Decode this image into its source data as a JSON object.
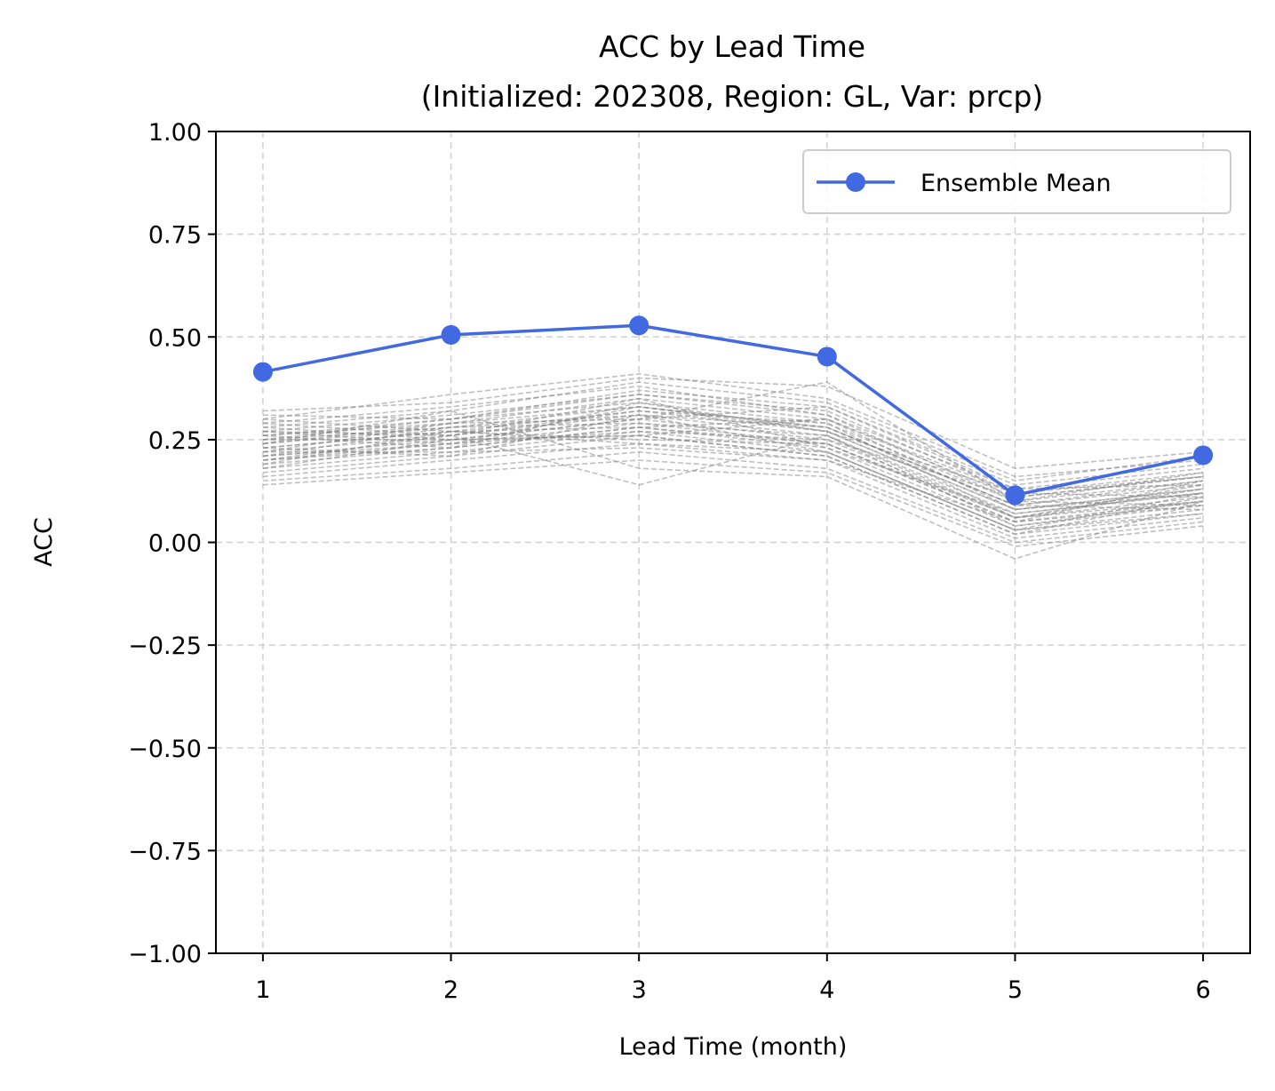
{
  "chart_data": {
    "type": "line",
    "title_line1": "ACC by Lead Time",
    "title_line2": "(Initialized: 202308, Region: GL, Var: prcp)",
    "xlabel": "Lead Time (month)",
    "ylabel": "ACC",
    "x": [
      1,
      2,
      3,
      4,
      5,
      6
    ],
    "xlim": [
      0.75,
      6.25
    ],
    "ylim": [
      -1.0,
      1.0
    ],
    "xticks": [
      1,
      2,
      3,
      4,
      5,
      6
    ],
    "xtick_labels": [
      "1",
      "2",
      "3",
      "4",
      "5",
      "6"
    ],
    "yticks": [
      -1.0,
      -0.75,
      -0.5,
      -0.25,
      0.0,
      0.25,
      0.5,
      0.75,
      1.0
    ],
    "ytick_labels": [
      "−1.00",
      "−0.75",
      "−0.50",
      "−0.25",
      "0.00",
      "0.25",
      "0.50",
      "0.75",
      "1.00"
    ],
    "grid": true,
    "legend_position": "top-right",
    "colors": {
      "ensemble_mean": "#4169E1",
      "members": "#808080",
      "grid": "#d0d0d0"
    },
    "series": [
      {
        "name": "Ensemble Mean",
        "values": [
          0.415,
          0.505,
          0.528,
          0.452,
          0.115,
          0.212
        ]
      }
    ],
    "member_series": [
      [
        0.32,
        0.34,
        0.4,
        0.38,
        0.18,
        0.22
      ],
      [
        0.3,
        0.36,
        0.41,
        0.35,
        0.16,
        0.2
      ],
      [
        0.28,
        0.32,
        0.39,
        0.34,
        0.15,
        0.21
      ],
      [
        0.31,
        0.3,
        0.37,
        0.33,
        0.14,
        0.19
      ],
      [
        0.29,
        0.33,
        0.38,
        0.31,
        0.13,
        0.18
      ],
      [
        0.27,
        0.31,
        0.36,
        0.32,
        0.12,
        0.17
      ],
      [
        0.26,
        0.29,
        0.35,
        0.3,
        0.11,
        0.16
      ],
      [
        0.25,
        0.3,
        0.34,
        0.29,
        0.1,
        0.15
      ],
      [
        0.24,
        0.28,
        0.33,
        0.28,
        0.09,
        0.14
      ],
      [
        0.23,
        0.27,
        0.32,
        0.27,
        0.08,
        0.13
      ],
      [
        0.22,
        0.26,
        0.31,
        0.26,
        0.07,
        0.12
      ],
      [
        0.21,
        0.25,
        0.3,
        0.25,
        0.06,
        0.11
      ],
      [
        0.2,
        0.24,
        0.29,
        0.24,
        0.05,
        0.1
      ],
      [
        0.19,
        0.23,
        0.28,
        0.23,
        0.04,
        0.09
      ],
      [
        0.18,
        0.22,
        0.27,
        0.22,
        0.03,
        0.08
      ],
      [
        0.17,
        0.21,
        0.26,
        0.21,
        0.02,
        0.07
      ],
      [
        0.16,
        0.2,
        0.24,
        0.2,
        0.01,
        0.06
      ],
      [
        0.15,
        0.18,
        0.22,
        0.18,
        0.0,
        0.05
      ],
      [
        0.14,
        0.17,
        0.2,
        0.17,
        -0.01,
        0.04
      ],
      [
        0.3,
        0.27,
        0.24,
        0.22,
        0.03,
        0.12
      ],
      [
        0.24,
        0.32,
        0.18,
        0.16,
        -0.04,
        0.1
      ],
      [
        0.2,
        0.26,
        0.14,
        0.26,
        0.06,
        0.14
      ],
      [
        0.28,
        0.25,
        0.3,
        0.39,
        0.1,
        0.09
      ],
      [
        0.22,
        0.29,
        0.33,
        0.27,
        0.12,
        0.11
      ],
      [
        0.26,
        0.23,
        0.28,
        0.3,
        0.08,
        0.13
      ],
      [
        0.19,
        0.27,
        0.25,
        0.24,
        0.05,
        0.15
      ],
      [
        0.23,
        0.21,
        0.31,
        0.28,
        0.09,
        0.08
      ],
      [
        0.27,
        0.26,
        0.35,
        0.23,
        0.07,
        0.12
      ],
      [
        0.21,
        0.24,
        0.27,
        0.25,
        0.11,
        0.16
      ],
      [
        0.25,
        0.28,
        0.29,
        0.26,
        0.04,
        0.1
      ],
      [
        0.29,
        0.26,
        0.32,
        0.29,
        0.06,
        0.13
      ],
      [
        0.18,
        0.25,
        0.26,
        0.21,
        0.02,
        0.11
      ],
      [
        0.24,
        0.29,
        0.3,
        0.33,
        0.13,
        0.14
      ],
      [
        0.22,
        0.22,
        0.23,
        0.2,
        0.05,
        0.09
      ],
      [
        0.26,
        0.3,
        0.36,
        0.31,
        0.1,
        0.17
      ],
      [
        0.2,
        0.23,
        0.34,
        0.27,
        0.08,
        0.12
      ],
      [
        0.23,
        0.27,
        0.28,
        0.24,
        0.06,
        0.1
      ],
      [
        0.27,
        0.24,
        0.33,
        0.28,
        0.09,
        0.15
      ],
      [
        0.21,
        0.28,
        0.31,
        0.22,
        0.03,
        0.07
      ],
      [
        0.25,
        0.25,
        0.26,
        0.3,
        0.12,
        0.16
      ]
    ]
  }
}
